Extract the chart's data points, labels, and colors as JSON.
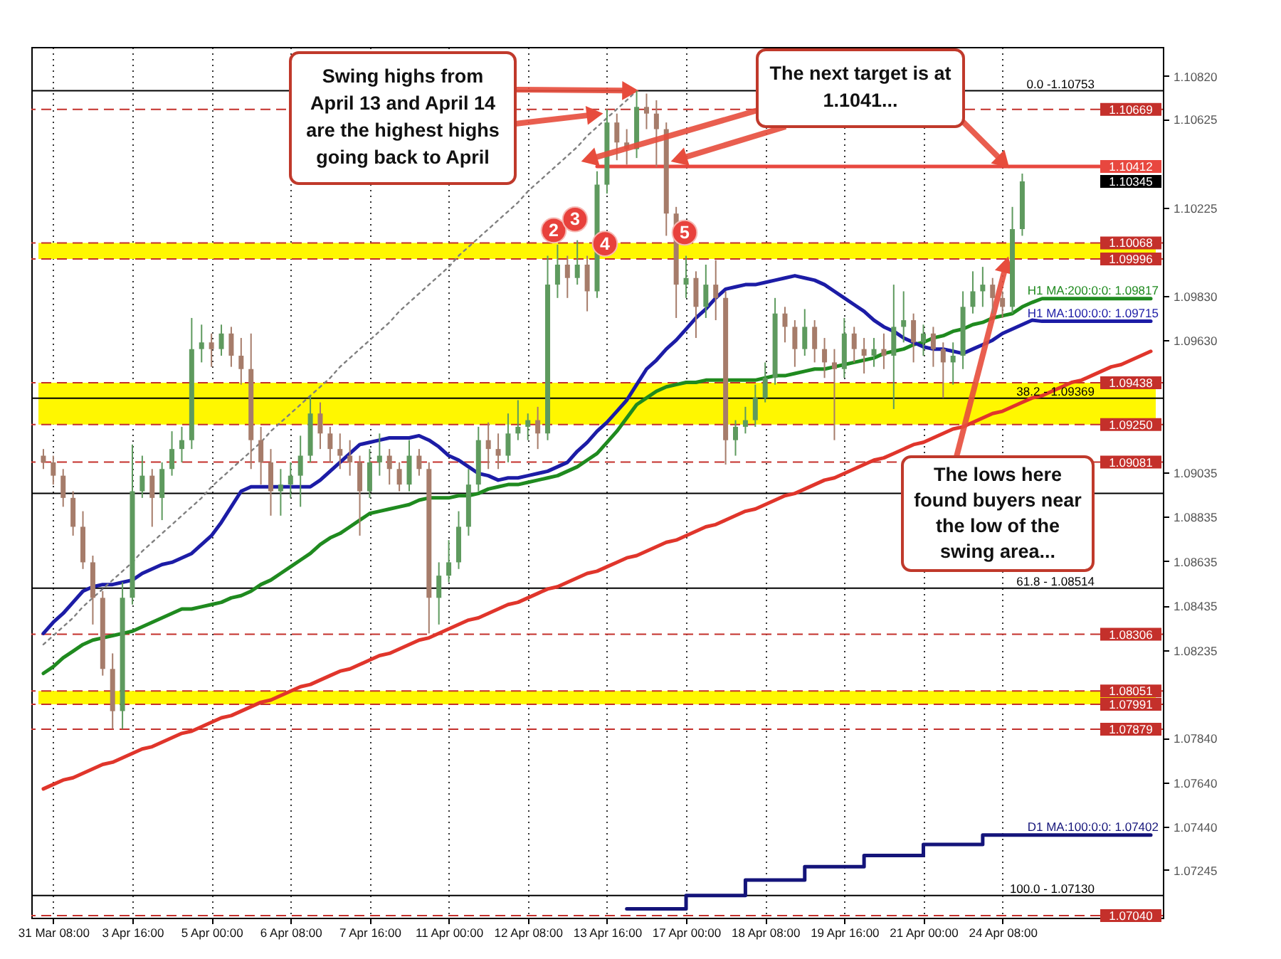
{
  "chart_data": {
    "type": "candlestick",
    "categories": [
      null,
      "31 Mar 08:00",
      null,
      null,
      null,
      null,
      null,
      null,
      null,
      "3 Apr 16:00",
      null,
      null,
      null,
      null,
      null,
      null,
      null,
      "5 Apr 00:00",
      null,
      null,
      null,
      null,
      null,
      null,
      null,
      "6 Apr 08:00",
      null,
      null,
      null,
      null,
      null,
      null,
      null,
      "7 Apr 16:00",
      null,
      null,
      null,
      null,
      null,
      null,
      null,
      "11 Apr 00:00",
      null,
      null,
      null,
      null,
      null,
      null,
      null,
      "12 Apr 08:00",
      null,
      null,
      null,
      null,
      null,
      null,
      null,
      "13 Apr 16:00",
      null,
      null,
      null,
      null,
      null,
      null,
      null,
      "17 Apr 00:00",
      null,
      null,
      null,
      null,
      null,
      null,
      null,
      "18 Apr 08:00",
      null,
      null,
      null,
      null,
      null,
      null,
      null,
      "19 Apr 16:00",
      null,
      null,
      null,
      null,
      null,
      null,
      null,
      "21 Apr 00:00",
      null,
      null,
      null,
      null,
      null,
      null,
      null,
      "24 Apr 08:00",
      null,
      null,
      null,
      null,
      null,
      null,
      null,
      null,
      null,
      null,
      null,
      null,
      null,
      null,
      null
    ],
    "ylim": [
      1.0703,
      1.1095
    ],
    "yticks": [
      {
        "value": 1.1082,
        "label": "1.10820"
      },
      1.10625,
      1.10225,
      {
        "value": 1.0983,
        "label": "1.09830"
      },
      {
        "value": 1.0963,
        "label": "1.09630"
      },
      1.09035,
      1.08835,
      1.08635,
      1.08435,
      1.08235,
      {
        "value": 1.0784,
        "label": "1.07840"
      },
      {
        "value": 1.0764,
        "label": "1.07640"
      },
      {
        "value": 1.0744,
        "label": "1.07440"
      },
      1.07245
    ],
    "grid": "x",
    "ohlc": [
      [
        1.0911,
        1.0914,
        1.0905,
        1.0908
      ],
      [
        1.0908,
        1.0911,
        1.0898,
        1.0902
      ],
      [
        1.0902,
        1.0905,
        1.0888,
        1.0892
      ],
      [
        1.0892,
        1.0895,
        1.0875,
        1.0879
      ],
      [
        1.0879,
        1.0886,
        1.086,
        1.0863
      ],
      [
        1.0863,
        1.0866,
        1.0835,
        1.0847
      ],
      [
        1.0847,
        1.085,
        1.0812,
        1.0815
      ],
      [
        1.0815,
        1.0822,
        1.0788,
        1.0796
      ],
      [
        1.0796,
        1.0854,
        1.0788,
        1.0847
      ],
      [
        1.0847,
        1.0916,
        1.0844,
        1.0895
      ],
      [
        1.0895,
        1.0911,
        1.0892,
        1.0902
      ],
      [
        1.0902,
        1.0905,
        1.0879,
        1.0892
      ],
      [
        1.0892,
        1.0908,
        1.0882,
        1.0905
      ],
      [
        1.0905,
        1.0922,
        1.0902,
        1.0914
      ],
      [
        1.0914,
        1.0924,
        1.0908,
        1.0918
      ],
      [
        1.0918,
        1.0973,
        1.0914,
        1.0959
      ],
      [
        1.0959,
        1.097,
        1.0953,
        1.0962
      ],
      [
        1.0962,
        1.0966,
        1.0951,
        1.0959
      ],
      [
        1.0959,
        1.097,
        1.0956,
        1.0966
      ],
      [
        1.0966,
        1.0969,
        1.0951,
        1.0956
      ],
      [
        1.0956,
        1.0964,
        1.0943,
        1.095
      ],
      [
        1.095,
        1.0966,
        1.0905,
        1.0918
      ],
      [
        1.0918,
        1.0924,
        1.0898,
        1.0908
      ],
      [
        1.0908,
        1.0914,
        1.0884,
        1.0895
      ],
      [
        1.0895,
        1.0905,
        1.0884,
        1.0898
      ],
      [
        1.0898,
        1.0908,
        1.0892,
        1.0902
      ],
      [
        1.0902,
        1.092,
        1.0888,
        1.0911
      ],
      [
        1.0911,
        1.0938,
        1.0908,
        1.093
      ],
      [
        1.093,
        1.0935,
        1.0914,
        1.0921
      ],
      [
        1.0921,
        1.0924,
        1.0908,
        1.0914
      ],
      [
        1.0914,
        1.0921,
        1.0905,
        1.0911
      ],
      [
        1.0911,
        1.0918,
        1.0902,
        1.0908
      ],
      [
        1.0908,
        1.0911,
        1.0875,
        1.0895
      ],
      [
        1.0895,
        1.0914,
        1.0892,
        1.0908
      ],
      [
        1.0908,
        1.0921,
        1.0902,
        1.0911
      ],
      [
        1.0911,
        1.0914,
        1.0898,
        1.0905
      ],
      [
        1.0905,
        1.0908,
        1.0895,
        1.0898
      ],
      [
        1.0898,
        1.0918,
        1.0895,
        1.0911
      ],
      [
        1.0911,
        1.0914,
        1.0902,
        1.0905
      ],
      [
        1.0905,
        1.0908,
        1.0831,
        1.0847
      ],
      [
        1.0847,
        1.0863,
        1.0835,
        1.0857
      ],
      [
        1.0857,
        1.0873,
        1.0854,
        1.0863
      ],
      [
        1.0863,
        1.0886,
        1.086,
        1.0879
      ],
      [
        1.0879,
        1.0905,
        1.0875,
        1.0898
      ],
      [
        1.0898,
        1.0924,
        1.0895,
        1.0918
      ],
      [
        1.0918,
        1.0926,
        1.0905,
        1.0914
      ],
      [
        1.0914,
        1.0921,
        1.0905,
        1.0911
      ],
      [
        1.0911,
        1.093,
        1.0908,
        1.0921
      ],
      [
        1.0921,
        1.0936,
        1.0918,
        1.0924
      ],
      [
        1.0924,
        1.093,
        1.0918,
        1.0927
      ],
      [
        1.0927,
        1.0933,
        1.0914,
        1.0921
      ],
      [
        1.0921,
        1.1001,
        1.0918,
        1.0988
      ],
      [
        1.0988,
        1.1006,
        1.0982,
        1.0997
      ],
      [
        1.0997,
        1.1001,
        1.0982,
        1.0991
      ],
      [
        1.0991,
        1.1008,
        1.0988,
        1.0997
      ],
      [
        1.0997,
        1.1001,
        1.0976,
        1.0985
      ],
      [
        1.0985,
        1.1039,
        1.0982,
        1.1033
      ],
      [
        1.1033,
        1.1067,
        1.1029,
        1.1061
      ],
      [
        1.1061,
        1.1065,
        1.1044,
        1.1052
      ],
      [
        1.1052,
        1.1058,
        1.1042,
        1.1049
      ],
      [
        1.1049,
        1.10753,
        1.1045,
        1.1068
      ],
      [
        1.1068,
        1.1074,
        1.1058,
        1.1065
      ],
      [
        1.1065,
        1.1071,
        1.1041,
        1.1058
      ],
      [
        1.1058,
        1.1061,
        1.101,
        1.102
      ],
      [
        1.102,
        1.1023,
        1.0973,
        1.0988
      ],
      [
        1.0988,
        1.1001,
        1.0982,
        1.0991
      ],
      [
        1.0991,
        1.0994,
        1.0964,
        1.0978
      ],
      [
        1.0978,
        1.0997,
        1.0973,
        1.0988
      ],
      [
        1.0988,
        1.0999,
        1.0972,
        1.0982
      ],
      [
        1.0982,
        1.0985,
        1.0907,
        1.0918
      ],
      [
        1.0918,
        1.0927,
        1.0911,
        1.0924
      ],
      [
        1.0924,
        1.0933,
        1.0921,
        1.0927
      ],
      [
        1.0927,
        1.0943,
        1.0924,
        1.0937
      ],
      [
        1.0937,
        1.0953,
        1.0935,
        1.0946
      ],
      [
        1.0946,
        1.0982,
        1.0943,
        1.0975
      ],
      [
        1.0975,
        1.0978,
        1.0962,
        1.0969
      ],
      [
        1.0969,
        1.0972,
        1.0951,
        1.0959
      ],
      [
        1.0959,
        1.0977,
        1.0956,
        1.0969
      ],
      [
        1.0969,
        1.0972,
        1.0953,
        1.0959
      ],
      [
        1.0959,
        1.0964,
        1.0946,
        1.0953
      ],
      [
        1.0953,
        1.0959,
        1.0918,
        1.095
      ],
      [
        1.095,
        1.0973,
        1.0946,
        1.0966
      ],
      [
        1.0966,
        1.0969,
        1.0953,
        1.0959
      ],
      [
        1.0959,
        1.0964,
        1.0948,
        1.0956
      ],
      [
        1.0956,
        1.0964,
        1.0951,
        1.0959
      ],
      [
        1.0959,
        1.0966,
        1.095,
        1.0956
      ],
      [
        1.0956,
        1.0988,
        1.0932,
        1.0969
      ],
      [
        1.0969,
        1.0985,
        1.0962,
        1.0972
      ],
      [
        1.0972,
        1.0975,
        1.0953,
        1.0962
      ],
      [
        1.0962,
        1.097,
        1.0956,
        1.0966
      ],
      [
        1.0966,
        1.0969,
        1.0951,
        1.0959
      ],
      [
        1.0959,
        1.0962,
        1.0937,
        1.0953
      ],
      [
        1.0953,
        1.0962,
        1.0943,
        1.0956
      ],
      [
        1.0956,
        1.0985,
        1.095,
        1.0978
      ],
      [
        1.0978,
        1.0994,
        1.0975,
        1.0985
      ],
      [
        1.0985,
        1.0996,
        1.0978,
        1.0988
      ],
      [
        1.0988,
        1.0991,
        1.0975,
        1.0982
      ],
      [
        1.0982,
        1.0985,
        1.0973,
        1.0978
      ],
      [
        1.0978,
        1.1023,
        1.0975,
        1.1013
      ],
      [
        1.1013,
        1.1038,
        1.101,
        1.10345
      ],
      null,
      null,
      null,
      null,
      null,
      null,
      null,
      null,
      null,
      null,
      null,
      null,
      null
    ],
    "colors": [
      "#a67c6a",
      "#a67c6a",
      "#a67c6a",
      "#a67c6a",
      "#a67c6a",
      "#a67c6a",
      "#a67c6a",
      "#a67c6a",
      "#5e9a5e",
      "#5e9a5e",
      "#5e9a5e",
      "#a67c6a",
      "#5e9a5e",
      "#5e9a5e",
      "#5e9a5e",
      "#5e9a5e",
      "#5e9a5e",
      "#a67c6a",
      "#5e9a5e",
      "#a67c6a",
      "#a67c6a",
      "#a67c6a",
      "#a67c6a",
      "#a67c6a",
      "#5e9a5e",
      "#5e9a5e",
      "#5e9a5e",
      "#5e9a5e",
      "#a67c6a",
      "#a67c6a",
      "#a67c6a",
      "#a67c6a",
      "#a67c6a",
      "#5e9a5e",
      "#5e9a5e",
      "#a67c6a",
      "#a67c6a",
      "#5e9a5e",
      "#a67c6a",
      "#a67c6a",
      "#5e9a5e",
      "#5e9a5e",
      "#5e9a5e",
      "#5e9a5e",
      "#5e9a5e",
      "#a67c6a",
      "#a67c6a",
      "#5e9a5e",
      "#5e9a5e",
      "#5e9a5e",
      "#a67c6a",
      "#5e9a5e",
      "#5e9a5e",
      "#a67c6a",
      "#5e9a5e",
      "#a67c6a",
      "#5e9a5e",
      "#5e9a5e",
      "#a67c6a",
      "#a67c6a",
      "#5e9a5e",
      "#a67c6a",
      "#a67c6a",
      "#a67c6a",
      "#a67c6a",
      "#5e9a5e",
      "#a67c6a",
      "#5e9a5e",
      "#a67c6a",
      "#a67c6a",
      "#5e9a5e",
      "#5e9a5e",
      "#5e9a5e",
      "#5e9a5e",
      "#5e9a5e",
      "#a67c6a",
      "#a67c6a",
      "#5e9a5e",
      "#a67c6a",
      "#a67c6a",
      "#a67c6a",
      "#5e9a5e",
      "#a67c6a",
      "#a67c6a",
      "#5e9a5e",
      "#a67c6a",
      "#5e9a5e",
      "#5e9a5e",
      "#a67c6a",
      "#5e9a5e",
      "#a67c6a",
      "#a67c6a",
      "#5e9a5e",
      "#5e9a5e",
      "#5e9a5e",
      "#5e9a5e",
      "#a67c6a",
      "#a67c6a",
      "#5e9a5e",
      "#5e9a5e",
      null,
      null,
      null,
      null,
      null,
      null,
      null,
      null,
      null,
      null,
      null,
      null,
      null
    ],
    "series": [
      {
        "name": "H1 MA:200:0:0: 1.09817",
        "type": "line",
        "color": "#1f8a1f",
        "values": [
          1.0813,
          1.0816,
          1.082,
          1.0823,
          1.0826,
          1.0828,
          1.0829,
          1.083,
          1.0831,
          1.0832,
          1.0834,
          1.0836,
          1.0838,
          1.084,
          1.0842,
          1.0842,
          1.0843,
          1.0844,
          1.0845,
          1.0847,
          1.0848,
          1.085,
          1.0853,
          1.0855,
          1.0858,
          1.0861,
          1.0864,
          1.0867,
          1.0871,
          1.0874,
          1.0876,
          1.0879,
          1.0882,
          1.0885,
          1.0886,
          1.0887,
          1.0888,
          1.0889,
          1.0891,
          1.0892,
          1.0892,
          1.0892,
          1.0893,
          1.0893,
          1.0894,
          1.0896,
          1.0897,
          1.0898,
          1.0898,
          1.0899,
          1.09,
          1.0901,
          1.0902,
          1.0904,
          1.0906,
          1.0909,
          1.0912,
          1.0917,
          1.0922,
          1.0928,
          1.0934,
          1.0937,
          1.094,
          1.0942,
          1.0943,
          1.0944,
          1.0944,
          1.0945,
          1.0945,
          1.0945,
          1.0945,
          1.0945,
          1.0945,
          1.0946,
          1.0947,
          1.0947,
          1.0948,
          1.0949,
          1.095,
          1.095,
          1.0951,
          1.0952,
          1.0953,
          1.0954,
          1.0955,
          1.0957,
          1.0958,
          1.0959,
          1.0961,
          1.0962,
          1.0964,
          1.0965,
          1.0967,
          1.0968,
          1.097,
          1.0971,
          1.0973,
          1.0974,
          1.0975,
          1.0978,
          1.098,
          1.09817,
          1.09817,
          1.09817,
          1.09817,
          1.09817,
          1.09817,
          1.09817,
          1.09817,
          1.09817,
          1.09817,
          1.09817,
          1.09817
        ]
      },
      {
        "name": "H1 MA:100:0:0: 1.09715",
        "type": "line",
        "color": "#1c1ca6",
        "values": [
          1.0831,
          1.0836,
          1.084,
          1.0845,
          1.085,
          1.0852,
          1.0853,
          1.0853,
          1.0854,
          1.0855,
          1.0858,
          1.086,
          1.0862,
          1.0863,
          1.0865,
          1.0867,
          1.0871,
          1.0875,
          1.0881,
          1.0888,
          1.0895,
          1.0897,
          1.0897,
          1.0897,
          1.0897,
          1.0897,
          1.0897,
          1.0897,
          1.09,
          1.0904,
          1.0908,
          1.0912,
          1.0916,
          1.0917,
          1.0918,
          1.0919,
          1.0919,
          1.0919,
          1.092,
          1.0918,
          1.0915,
          1.0911,
          1.0909,
          1.0906,
          1.0903,
          1.0902,
          1.09,
          1.0901,
          1.0901,
          1.0902,
          1.0903,
          1.0904,
          1.0906,
          1.0908,
          1.0913,
          1.0917,
          1.0922,
          1.0926,
          1.0931,
          1.0936,
          1.0943,
          1.095,
          1.0954,
          1.0959,
          1.0963,
          1.0968,
          1.0973,
          1.0977,
          1.0982,
          1.0986,
          1.0987,
          1.0988,
          1.0988,
          1.0989,
          1.099,
          1.0991,
          1.0992,
          1.0991,
          1.099,
          1.0988,
          1.0985,
          1.0982,
          1.0979,
          1.0976,
          1.0972,
          1.0969,
          1.0967,
          1.0964,
          1.0962,
          1.096,
          1.0959,
          1.0959,
          1.0958,
          1.0957,
          1.0959,
          1.0961,
          1.0963,
          1.0966,
          1.0968,
          1.097,
          1.0972,
          1.09715,
          1.09715,
          1.09715,
          1.09715,
          1.09715,
          1.09715,
          1.09715,
          1.09715,
          1.09715,
          1.09715,
          1.09715,
          1.09715
        ]
      },
      {
        "name": "D1 MA:100:0:0: 1.07402",
        "type": "step",
        "color": "#14147a",
        "values": [
          null,
          null,
          null,
          null,
          null,
          null,
          null,
          null,
          null,
          null,
          null,
          null,
          null,
          null,
          null,
          null,
          null,
          null,
          null,
          null,
          null,
          null,
          null,
          null,
          null,
          null,
          null,
          null,
          null,
          null,
          null,
          null,
          null,
          null,
          null,
          null,
          null,
          null,
          null,
          null,
          null,
          null,
          null,
          null,
          null,
          null,
          null,
          null,
          null,
          null,
          null,
          null,
          null,
          null,
          null,
          null,
          null,
          null,
          null,
          1.0707,
          1.0707,
          1.0707,
          1.0707,
          1.0707,
          1.0707,
          1.0713,
          1.0713,
          1.0713,
          1.0713,
          1.0713,
          1.0713,
          1.072,
          1.072,
          1.072,
          1.072,
          1.072,
          1.072,
          1.0726,
          1.0726,
          1.0726,
          1.0726,
          1.0726,
          1.0726,
          1.0731,
          1.0731,
          1.0731,
          1.0731,
          1.0731,
          1.0731,
          1.0736,
          1.0736,
          1.0736,
          1.0736,
          1.0736,
          1.0736,
          1.07402,
          1.07402,
          1.07402,
          1.07402,
          1.07402,
          1.07402,
          1.07402,
          1.07402,
          1.07402,
          1.07402,
          1.07402,
          1.07402,
          1.07402,
          1.07402,
          1.07402,
          1.07402,
          1.07402,
          1.07402
        ]
      },
      {
        "type": "line",
        "color": "#e0352b",
        "values": [
          1.0761,
          1.0763,
          1.0765,
          1.0766,
          1.0768,
          1.077,
          1.0772,
          1.0773,
          1.0775,
          1.0777,
          1.0779,
          1.078,
          1.0782,
          1.0784,
          1.0786,
          1.0787,
          1.0789,
          1.0791,
          1.0793,
          1.0794,
          1.0796,
          1.0798,
          1.08,
          1.0801,
          1.0803,
          1.0805,
          1.0807,
          1.0808,
          1.081,
          1.0812,
          1.0814,
          1.0815,
          1.0817,
          1.0819,
          1.0821,
          1.0822,
          1.0824,
          1.0826,
          1.0828,
          1.0829,
          1.0831,
          1.0833,
          1.0835,
          1.0837,
          1.0838,
          1.084,
          1.0842,
          1.0844,
          1.0845,
          1.0847,
          1.0849,
          1.0851,
          1.0852,
          1.0854,
          1.0856,
          1.0858,
          1.0859,
          1.0861,
          1.0863,
          1.0865,
          1.0866,
          1.0868,
          1.087,
          1.0872,
          1.0873,
          1.0875,
          1.0877,
          1.0879,
          1.088,
          1.0882,
          1.0884,
          1.0886,
          1.0887,
          1.0889,
          1.0891,
          1.0893,
          1.0894,
          1.0896,
          1.0898,
          1.09,
          1.0901,
          1.0903,
          1.0905,
          1.0907,
          1.0909,
          1.091,
          1.0912,
          1.0914,
          1.0916,
          1.0917,
          1.0919,
          1.0921,
          1.0923,
          1.0924,
          1.0926,
          1.0928,
          1.093,
          1.0931,
          1.0933,
          1.0935,
          1.0937,
          1.0938,
          1.094,
          1.0942,
          1.0944,
          1.0945,
          1.0947,
          1.0949,
          1.0951,
          1.0952,
          1.0954,
          1.0956,
          1.0958
        ]
      },
      {
        "type": "line",
        "line_style": "dotted",
        "color": "#808080",
        "values": [
          1.0826,
          1.083,
          1.0834,
          1.0838,
          1.0843,
          1.0847,
          1.0851,
          1.0855,
          1.0859,
          1.0863,
          1.0868,
          1.0872,
          1.0876,
          1.088,
          1.0884,
          1.0888,
          1.0892,
          1.0897,
          1.0901,
          1.0905,
          1.0909,
          1.0913,
          1.0917,
          1.0922,
          1.0926,
          1.093,
          1.0934,
          1.0938,
          1.0942,
          1.0946,
          1.0951,
          1.0955,
          1.0959,
          1.0963,
          1.0967,
          1.0971,
          1.0976,
          1.098,
          1.0984,
          1.0988,
          1.0992,
          1.0996,
          1.1001,
          1.1005,
          1.1009,
          1.1013,
          1.1017,
          1.1021,
          1.1025,
          1.103,
          1.1034,
          1.1038,
          1.1042,
          1.1046,
          1.105,
          1.1055,
          1.1059,
          1.1063,
          1.1067,
          1.1071,
          1.10753,
          null,
          null,
          null,
          null,
          null,
          null,
          null,
          null,
          null,
          null,
          null,
          null,
          null,
          null,
          null,
          null,
          null,
          null,
          null,
          null,
          null,
          null,
          null,
          null,
          null,
          null,
          null,
          null,
          null,
          null,
          null,
          null,
          null,
          null,
          null,
          null,
          null,
          null,
          null,
          null,
          null,
          null,
          null,
          null,
          null,
          null,
          null,
          null,
          null,
          null,
          null,
          null
        ]
      },
      {
        "type": "line",
        "color": "#e8473f",
        "values": [
          null,
          null,
          null,
          null,
          null,
          null,
          null,
          null,
          null,
          null,
          null,
          null,
          null,
          null,
          null,
          null,
          null,
          null,
          null,
          null,
          null,
          null,
          null,
          null,
          null,
          null,
          null,
          null,
          null,
          null,
          null,
          null,
          null,
          null,
          null,
          null,
          null,
          null,
          null,
          null,
          null,
          null,
          null,
          null,
          null,
          null,
          null,
          null,
          null,
          null,
          null,
          null,
          null,
          null,
          null,
          null,
          1.10412,
          1.10412,
          1.10412,
          1.10412,
          1.10412,
          1.10412,
          1.10412,
          1.10412,
          1.10412,
          1.10412,
          1.10412,
          1.10412,
          1.10412,
          1.10412,
          1.10412,
          1.10412,
          1.10412,
          1.10412,
          1.10412,
          1.10412,
          1.10412,
          1.10412,
          1.10412,
          1.10412,
          1.10412,
          1.10412,
          1.10412,
          1.10412,
          1.10412,
          1.10412,
          1.10412,
          1.10412,
          1.10412,
          1.10412,
          1.10412,
          1.10412,
          1.10412,
          1.10412,
          1.10412,
          1.10412,
          1.10412,
          1.10412,
          1.10412,
          1.10412,
          1.10412,
          1.10412,
          1.10412,
          1.10412,
          1.10412,
          1.10412,
          1.10412,
          1.10412,
          1.10412,
          1.10412,
          1.10412,
          1.10412,
          1.10412
        ],
        "value_labels": [
          null,
          null,
          null,
          null,
          null,
          null,
          null,
          null,
          null,
          null,
          null,
          null,
          null,
          null,
          null,
          null,
          null,
          null,
          null,
          null,
          null,
          null,
          null,
          null,
          null,
          null,
          null,
          null,
          null,
          null,
          null,
          null,
          null,
          null,
          null,
          null,
          null,
          null,
          null,
          null,
          null,
          null,
          null,
          null,
          null,
          null,
          null,
          null,
          null,
          null,
          null,
          null,
          null,
          null,
          null,
          null,
          null,
          null,
          null,
          null,
          null,
          null,
          null,
          null,
          null,
          null,
          null,
          null,
          null,
          null,
          null,
          null,
          null,
          null,
          null,
          null,
          null,
          null,
          null,
          null,
          null,
          null,
          null,
          null,
          null,
          null,
          null,
          null,
          null,
          null,
          null,
          null,
          null,
          null,
          null,
          null,
          null,
          null,
          null,
          null,
          null,
          null,
          null,
          null,
          null,
          null,
          null,
          null,
          null,
          null,
          null,
          null,
          "1.10412"
        ]
      }
    ],
    "bands": [
      {
        "axis": "y",
        "from": 1.09996,
        "to": 1.10068,
        "color": "#fff700"
      },
      {
        "axis": "y",
        "from": 1.0925,
        "to": 1.09438,
        "color": "#fff700"
      },
      {
        "axis": "y",
        "from": 1.07991,
        "to": 1.08051,
        "color": "#fff700"
      }
    ],
    "ref_lines": [
      {
        "axis": "y",
        "value": 1.10753,
        "color": "#000000",
        "line_style": "solid"
      },
      {
        "axis": "y",
        "value": 1.10669,
        "label": "1.10669",
        "color": "#c4302b",
        "line_style": "dashed"
      },
      {
        "axis": "y",
        "value": 1.10068,
        "label": "1.10068",
        "color": "#c4302b",
        "line_style": "dashed"
      },
      {
        "axis": "y",
        "value": 1.09996,
        "label": "1.09996",
        "color": "#c4302b",
        "line_style": "dashed"
      },
      {
        "axis": "y",
        "value": 1.09438,
        "label": "1.09438",
        "color": "#c4302b",
        "line_style": "dashed"
      },
      {
        "axis": "y",
        "value": 1.09369,
        "color": "#000000",
        "line_style": "solid"
      },
      {
        "axis": "y",
        "value": 1.0925,
        "label": "1.09250",
        "color": "#c4302b",
        "line_style": "dashed"
      },
      {
        "axis": "y",
        "value": 1.09081,
        "label": "1.09081",
        "color": "#c4302b",
        "line_style": "dashed"
      },
      {
        "axis": "y",
        "value": 1.0894,
        "color": "#000000",
        "line_style": "solid"
      },
      {
        "axis": "y",
        "value": 1.08514,
        "color": "#000000",
        "line_style": "solid"
      },
      {
        "axis": "y",
        "value": 1.08306,
        "label": "1.08306",
        "color": "#c4302b",
        "line_style": "dashed"
      },
      {
        "axis": "y",
        "value": 1.08051,
        "label": "1.08051",
        "color": "#c4302b",
        "line_style": "dashed"
      },
      {
        "axis": "y",
        "value": 1.07991,
        "label": "1.07991",
        "color": "#c4302b",
        "line_style": "dashed"
      },
      {
        "axis": "y",
        "value": 1.07879,
        "label": "1.07879",
        "color": "#c4302b",
        "line_style": "dashed"
      },
      {
        "axis": "y",
        "value": 1.0713,
        "color": "#000000",
        "line_style": "solid"
      },
      {
        "axis": "y",
        "value": 1.0704,
        "label": "1.07040",
        "color": "#c4302b",
        "line_style": "dashed"
      }
    ],
    "annotations": [
      {
        "text": "Swing highs from April 13 and April 14 are the highest highs going back to April",
        "y": 1.10753
      },
      {
        "text": "The next target is at 1.1041...",
        "x": "24 Apr 08:00",
        "y": 1.10412
      },
      {
        "text": "The lows here found buyers near the low of the swing area...",
        "x": "24 Apr 08:00",
        "y": 1.09996
      },
      {
        "text": "2",
        "y": 1.1006
      },
      {
        "text": "3",
        "y": 1.1011
      },
      {
        "text": "4",
        "y": 1.1
      },
      {
        "text": "5",
        "y": 1.1005
      },
      "1.10345",
      {
        "text": "0.0 -1.10753",
        "y": 1.10753
      },
      {
        "text": "38.2 - 1.09369",
        "y": 1.09369
      },
      {
        "text": "61.8 - 1.08514",
        "y": 1.08514
      },
      {
        "text": "100.0 - 1.07130",
        "y": 1.0713
      }
    ]
  }
}
